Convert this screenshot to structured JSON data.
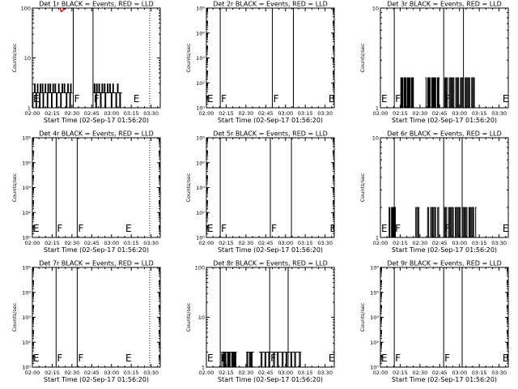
{
  "colors": {
    "events": "#000000",
    "lld": "#ff0000",
    "background": "#ffffff"
  },
  "chart_data": [
    {
      "type": "line",
      "title": "Det 1r BLACK = Events, RED = LLD",
      "xlabel": "Start Time (02-Sep-17 01:56:20)",
      "ylabel": "Counts/sec",
      "xticks": [
        "02:00",
        "02:15",
        "02:30",
        "02:45",
        "03:00",
        "03:15",
        "03:30"
      ],
      "yscale": "log",
      "ylim": [
        1,
        100
      ],
      "yticks": [
        {
          "v": 1,
          "label": "1"
        },
        {
          "v": 10,
          "label": "10"
        },
        {
          "v": 100,
          "label": "100"
        }
      ],
      "vlines_solid": [
        0,
        31,
        46
      ],
      "vlines_dotted": [
        89
      ],
      "markers": [
        {
          "t": 0,
          "label": "E"
        },
        {
          "t": 31,
          "label": "F"
        },
        {
          "t": 46,
          "label": "F"
        },
        {
          "t": 76,
          "label": "E"
        }
      ],
      "series": [
        {
          "color": "events",
          "segments": [
            {
              "start": 0,
              "end": 30.5,
              "levels": [
                1,
                2,
                2,
                3,
                2,
                1,
                2,
                3,
                2,
                2,
                1,
                3,
                2,
                2,
                3,
                1,
                2,
                2,
                3,
                2,
                2,
                1,
                3,
                2,
                2,
                3,
                2,
                1,
                2,
                3,
                2,
                2,
                3,
                2,
                1,
                2,
                2,
                3,
                2,
                2,
                1,
                2,
                3,
                2,
                2,
                3,
                2,
                2,
                1,
                2,
                3,
                2,
                2,
                1,
                3,
                2,
                2
              ]
            },
            {
              "start": 46.3,
              "end": 68,
              "levels": [
                2,
                3,
                2,
                1,
                3,
                2,
                2,
                3,
                2,
                1,
                2,
                3,
                2,
                2,
                3,
                1,
                2,
                2,
                3,
                2,
                2,
                3,
                2,
                1,
                2,
                3,
                2,
                2,
                2,
                1,
                2,
                3,
                2,
                2,
                1,
                2,
                2
              ]
            }
          ]
        },
        {
          "color": "lld",
          "segments": [
            {
              "start": 20,
              "end": 29,
              "levels": [
                100,
                100,
                90,
                85,
                88,
                92,
                100,
                95,
                100,
                100,
                100,
                100,
                100,
                100,
                100
              ]
            }
          ]
        }
      ]
    },
    {
      "type": "line",
      "title": "Det 2r BLACK = Events, RED = LLD",
      "xlabel": "Start Time (02-Sep-17 01:56:20)",
      "ylabel": "Counts/sec",
      "xticks": [
        "02:00",
        "02:15",
        "02:30",
        "02:45",
        "03:00",
        "03:15",
        "03:30"
      ],
      "yscale": "log",
      "ylim": [
        1,
        100000000
      ],
      "yticks": [
        {
          "v": 1,
          "label": "10⁰"
        },
        {
          "v": 100,
          "label": "10²"
        },
        {
          "v": 10000,
          "label": "10⁴"
        },
        {
          "v": 1000000,
          "label": "10⁶"
        },
        {
          "v": 100000000,
          "label": "10⁸"
        }
      ],
      "vlines_solid": [
        10.5,
        50,
        66
      ],
      "vlines_dotted": [
        116
      ],
      "markers": [
        {
          "t": 0,
          "label": "E"
        },
        {
          "t": 10.5,
          "label": "F"
        },
        {
          "t": 50,
          "label": "F"
        },
        {
          "t": 92,
          "label": "E"
        }
      ],
      "series": []
    },
    {
      "type": "line",
      "title": "Det 3r BLACK = Events, RED = LLD",
      "xlabel": "Start Time (02-Sep-17 01:56:20)",
      "ylabel": "Counts/sec",
      "xticks": [
        "02:00",
        "02:15",
        "02:30",
        "02:45",
        "03:00",
        "03:15",
        "03:30"
      ],
      "yscale": "log",
      "ylim": [
        1,
        10
      ],
      "yticks": [
        {
          "v": 1,
          "label": "1"
        },
        {
          "v": 10,
          "label": "10"
        }
      ],
      "vlines_solid": [
        10.5,
        48,
        63
      ],
      "vlines_dotted": [
        116
      ],
      "markers": [
        {
          "t": 0,
          "label": "E"
        },
        {
          "t": 10.5,
          "label": "F"
        },
        {
          "t": 48,
          "label": "F"
        },
        {
          "t": 92,
          "label": "E"
        }
      ],
      "series": [
        {
          "color": "events",
          "segments": [
            {
              "start": 15,
              "end": 26,
              "levels": [
                1,
                2,
                1,
                2,
                1,
                1,
                2,
                1,
                2,
                1,
                1,
                2,
                1,
                2,
                1,
                2,
                1,
                1,
                2,
                1,
                2,
                1,
                1
              ]
            },
            {
              "start": 34,
              "end": 45,
              "levels": [
                2,
                1,
                1,
                2,
                1,
                2,
                1,
                1,
                2,
                1,
                2,
                1,
                2,
                1,
                1,
                2,
                1,
                2
              ]
            },
            {
              "start": 48,
              "end": 72,
              "levels": [
                1,
                2,
                1,
                2,
                1,
                1,
                2,
                1,
                2,
                1,
                2,
                1,
                1,
                2,
                1,
                2,
                1,
                1,
                2,
                1,
                2,
                1,
                1,
                2,
                1,
                2,
                1,
                2,
                1,
                1,
                2,
                1,
                2,
                1
              ]
            }
          ]
        }
      ]
    },
    {
      "type": "line",
      "title": "Det 4r BLACK = Events, RED = LLD",
      "xlabel": "Start Time (02-Sep-17 01:56:20)",
      "ylabel": "Counts/sec",
      "xticks": [
        "02:00",
        "02:15",
        "02:30",
        "02:45",
        "03:00",
        "03:15",
        "03:30"
      ],
      "yscale": "log",
      "ylim": [
        1,
        100000000
      ],
      "yticks": [
        {
          "v": 1,
          "label": "10⁰"
        },
        {
          "v": 100,
          "label": "10²"
        },
        {
          "v": 10000,
          "label": "10⁴"
        },
        {
          "v": 1000000,
          "label": "10⁶"
        },
        {
          "v": 100000000,
          "label": "10⁸"
        }
      ],
      "vlines_solid": [
        18,
        34
      ],
      "vlines_dotted": [
        89
      ],
      "markers": [
        {
          "t": 0,
          "label": "E"
        },
        {
          "t": 18,
          "label": "F"
        },
        {
          "t": 34,
          "label": "F"
        },
        {
          "t": 70,
          "label": "E"
        }
      ],
      "series": []
    },
    {
      "type": "line",
      "title": "Det 5r BLACK = Events, RED = LLD",
      "xlabel": "Start Time (02-Sep-17 01:56:20)",
      "ylabel": "Counts/sec",
      "xticks": [
        "02:00",
        "02:15",
        "02:30",
        "02:45",
        "03:00",
        "03:15",
        "03:30"
      ],
      "yscale": "log",
      "ylim": [
        1,
        100000000
      ],
      "yticks": [
        {
          "v": 1,
          "label": "10⁰"
        },
        {
          "v": 100,
          "label": "10²"
        },
        {
          "v": 10000,
          "label": "10⁴"
        },
        {
          "v": 1000000,
          "label": "10⁶"
        },
        {
          "v": 100000000,
          "label": "10⁸"
        }
      ],
      "vlines_solid": [
        10.5,
        48.5,
        64.5
      ],
      "vlines_dotted": [
        116
      ],
      "markers": [
        {
          "t": 0,
          "label": "E"
        },
        {
          "t": 10.5,
          "label": "F"
        },
        {
          "t": 48.5,
          "label": "F"
        },
        {
          "t": 93,
          "label": "E"
        }
      ],
      "series": []
    },
    {
      "type": "line",
      "title": "Det 6r BLACK = Events, RED = LLD",
      "xlabel": "Start Time (02-Sep-17 01:56:20)",
      "ylabel": "Counts/sec",
      "xticks": [
        "02:00",
        "02:15",
        "02:30",
        "02:45",
        "03:00",
        "03:15",
        "03:30"
      ],
      "yscale": "log",
      "ylim": [
        1,
        10
      ],
      "yticks": [
        {
          "v": 1,
          "label": "1"
        },
        {
          "v": 10,
          "label": "10"
        }
      ],
      "vlines_solid": [
        10.5,
        48,
        62
      ],
      "vlines_dotted": [
        116
      ],
      "markers": [
        {
          "t": 0,
          "label": "E"
        },
        {
          "t": 10.5,
          "label": "F"
        },
        {
          "t": 48,
          "label": "F"
        },
        {
          "t": 92,
          "label": "E"
        }
      ],
      "series": [
        {
          "color": "events",
          "segments": [
            {
              "start": 6,
              "end": 12,
              "levels": [
                1,
                2,
                1,
                1,
                2,
                1,
                2,
                1,
                2,
                1
              ]
            },
            {
              "start": 26,
              "end": 30,
              "levels": [
                1,
                2,
                1,
                2,
                1
              ]
            },
            {
              "start": 35,
              "end": 45,
              "levels": [
                1,
                2,
                1,
                1,
                2,
                1,
                2,
                1,
                2,
                1,
                1,
                2,
                1
              ]
            },
            {
              "start": 48,
              "end": 73,
              "levels": [
                2,
                1,
                2,
                1,
                1,
                2,
                1,
                2,
                1,
                2,
                1,
                1,
                2,
                1,
                2,
                1,
                2,
                1,
                1,
                2,
                1,
                2,
                1,
                2,
                1,
                1,
                2,
                1,
                2,
                1,
                2,
                1,
                1,
                2
              ]
            }
          ]
        }
      ]
    },
    {
      "type": "line",
      "title": "Det 7r BLACK = Events, RED = LLD",
      "xlabel": "Start Time (02-Sep-17 01:56:20)",
      "ylabel": "Counts/sec",
      "xticks": [
        "02:00",
        "02:15",
        "02:30",
        "02:45",
        "03:00",
        "03:15",
        "03:30"
      ],
      "yscale": "log",
      "ylim": [
        1,
        100000000
      ],
      "yticks": [
        {
          "v": 1,
          "label": "10⁰"
        },
        {
          "v": 100,
          "label": "10²"
        },
        {
          "v": 10000,
          "label": "10⁴"
        },
        {
          "v": 1000000,
          "label": "10⁶"
        },
        {
          "v": 100000000,
          "label": "10⁸"
        }
      ],
      "vlines_solid": [
        18,
        34
      ],
      "vlines_dotted": [
        89
      ],
      "markers": [
        {
          "t": 0,
          "label": "E"
        },
        {
          "t": 18,
          "label": "F"
        },
        {
          "t": 34,
          "label": "F"
        },
        {
          "t": 70,
          "label": "E"
        }
      ],
      "series": []
    },
    {
      "type": "line",
      "title": "Det 8r BLACK = Events, RED = LLD",
      "xlabel": "Start Time (02-Sep-17 01:56:20)",
      "ylabel": "Counts/sec",
      "xticks": [
        "02:00",
        "02:15",
        "02:30",
        "02:45",
        "03:00",
        "03:15",
        "03:30"
      ],
      "yscale": "log",
      "ylim": [
        1,
        100
      ],
      "yticks": [
        {
          "v": 1,
          "label": "1"
        },
        {
          "v": 10,
          "label": "10"
        },
        {
          "v": 100,
          "label": "100"
        }
      ],
      "vlines_solid": [
        10.5,
        48,
        62
      ],
      "vlines_dotted": [
        116
      ],
      "markers": [
        {
          "t": 0,
          "label": "E"
        },
        {
          "t": 10.5,
          "label": "F"
        },
        {
          "t": 48,
          "label": "F"
        },
        {
          "t": 92,
          "label": "E"
        }
      ],
      "series": [
        {
          "color": "events",
          "segments": [
            {
              "start": 11,
              "end": 23,
              "levels": [
                1,
                2,
                2,
                1,
                2,
                1,
                2,
                2,
                1,
                2,
                1,
                2,
                2,
                1,
                2,
                1,
                2,
                1,
                2
              ]
            },
            {
              "start": 30,
              "end": 36,
              "levels": [
                2,
                1,
                2,
                2,
                1,
                2,
                1,
                2,
                2
              ]
            },
            {
              "start": 40,
              "end": 72,
              "levels": [
                2,
                2,
                1,
                2,
                2,
                2,
                1,
                2,
                2,
                2,
                1,
                2,
                2,
                2,
                2,
                1,
                2,
                2,
                2,
                1,
                2,
                2,
                2,
                2,
                1,
                2,
                2,
                2,
                1,
                2,
                2,
                2,
                2,
                1,
                2,
                2,
                2,
                1,
                2,
                2,
                2,
                2,
                1,
                2
              ]
            }
          ]
        }
      ]
    },
    {
      "type": "line",
      "title": "Det 9r BLACK = Events, RED = LLD",
      "xlabel": "Start Time (02-Sep-17 01:56:20)",
      "ylabel": "Counts/sec",
      "xticks": [
        "02:00",
        "02:15",
        "02:30",
        "02:45",
        "03:00",
        "03:15",
        "03:30"
      ],
      "yscale": "log",
      "ylim": [
        1,
        100000000
      ],
      "yticks": [
        {
          "v": 1,
          "label": "10⁰"
        },
        {
          "v": 100,
          "label": "10²"
        },
        {
          "v": 10000,
          "label": "10⁴"
        },
        {
          "v": 1000000,
          "label": "10⁶"
        },
        {
          "v": 100000000,
          "label": "10⁸"
        }
      ],
      "vlines_solid": [
        10.5,
        48,
        62
      ],
      "vlines_dotted": [
        116
      ],
      "markers": [
        {
          "t": 0,
          "label": "E"
        },
        {
          "t": 10.5,
          "label": "F"
        },
        {
          "t": 48,
          "label": "F"
        },
        {
          "t": 92,
          "label": "E"
        }
      ],
      "series": []
    }
  ]
}
